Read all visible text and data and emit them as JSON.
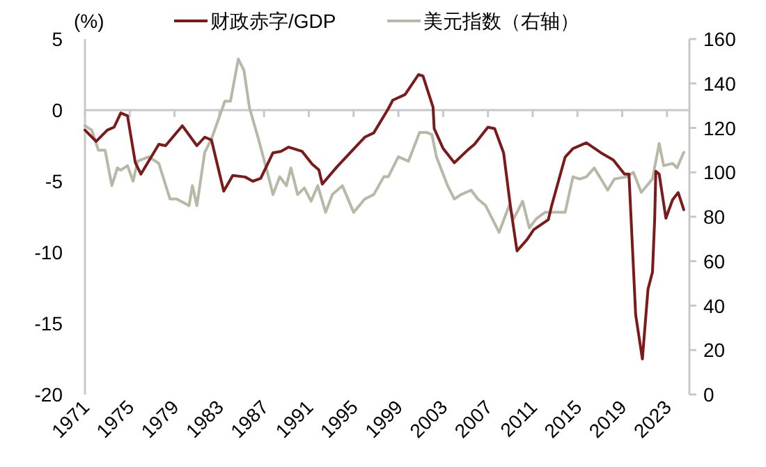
{
  "chart_data": {
    "type": "line",
    "ylabel": "(%)",
    "xlim": [
      1971,
      2025
    ],
    "xticks": [
      1971,
      1975,
      1979,
      1983,
      1987,
      1991,
      1995,
      1999,
      2003,
      2007,
      2011,
      2015,
      2019,
      2023
    ],
    "ylim": [
      -20,
      5
    ],
    "yticks": [
      -20,
      -15,
      -10,
      -5,
      0,
      5
    ],
    "y2lim": [
      0,
      160
    ],
    "y2ticks": [
      0,
      20,
      40,
      60,
      80,
      100,
      120,
      140,
      160
    ],
    "legend": "top",
    "line_style": "solid",
    "marker": "none",
    "series": [
      {
        "name": "财政赤字/GDP",
        "color": "#7b1a1a",
        "x": [
          1971,
          1972,
          1973,
          1973.6,
          1974.2,
          1974.8,
          1975.5,
          1976,
          1977.6,
          1978.2,
          1979.7,
          1981,
          1981.7,
          1982.3,
          1983.4,
          1984.2,
          1985.3,
          1986,
          1986.7,
          1987.8,
          1988.5,
          1989.2,
          1990.4,
          1991.3,
          1991.9,
          1992.2,
          1993.5,
          1996,
          1996.8,
          1998.1,
          1998.5,
          1999.6,
          2000.8,
          2001.2,
          2002.1,
          2002.2,
          2003,
          2004,
          2005.2,
          2005.8,
          2007,
          2007.6,
          2008.4,
          2009,
          2009.6,
          2010.5,
          2011.1,
          2012.4,
          2012.7,
          2013.9,
          2014.6,
          2015.5,
          2015.8,
          2017.1,
          2018.2,
          2019.2,
          2019.6,
          2020.2,
          2020.8,
          2021.3,
          2021.7,
          2021.9,
          2022,
          2022.3,
          2022.9,
          2023.5,
          2024,
          2024.5
        ],
        "values": [
          -1.4,
          -2.2,
          -1.4,
          -1.2,
          -0.2,
          -0.4,
          -3.7,
          -4.5,
          -2.4,
          -2.5,
          -1.1,
          -2.5,
          -1.9,
          -2.1,
          -5.7,
          -4.6,
          -4.7,
          -5,
          -4.8,
          -3.0,
          -2.9,
          -2.6,
          -2.9,
          -3.8,
          -4.2,
          -5.2,
          -4.0,
          -1.9,
          -1.6,
          0.1,
          0.7,
          1.1,
          2.5,
          2.4,
          0.2,
          -1.3,
          -2.7,
          -3.7,
          -2.8,
          -2.4,
          -1.2,
          -1.3,
          -3.0,
          -6.7,
          -9.9,
          -9.1,
          -8.4,
          -7.7,
          -6.7,
          -3.3,
          -2.7,
          -2.4,
          -2.3,
          -3.0,
          -3.5,
          -4.5,
          -4.5,
          -14.4,
          -17.5,
          -12.6,
          -11.4,
          -7.6,
          -4.3,
          -4.5,
          -7.6,
          -6.3,
          -5.8,
          -7.0
        ]
      },
      {
        "name": "美元指数（右轴）",
        "color": "#b7b8a5",
        "axis": "y2",
        "x": [
          1971,
          1971.6,
          1972.2,
          1972.8,
          1973.4,
          1973.9,
          1974.2,
          1974.8,
          1975.3,
          1975.7,
          1976.7,
          1977.6,
          1978.6,
          1979.2,
          1980.3,
          1980.6,
          1981,
          1981.7,
          1982.3,
          1983.5,
          1984,
          1984.7,
          1985.2,
          1985.7,
          1986.5,
          1987.3,
          1987.8,
          1988.4,
          1989,
          1989.4,
          1990,
          1990.6,
          1991.2,
          1991.8,
          1992.5,
          1993.1,
          1994,
          1995,
          1996,
          1996.8,
          1997.7,
          1998.1,
          1999,
          1999.9,
          2000.9,
          2001.5,
          2002,
          2002.4,
          2003.4,
          2004,
          2004.6,
          2005.5,
          2006.1,
          2006.8,
          2007.6,
          2008,
          2008.9,
          2009.3,
          2010.1,
          2010.7,
          2011.3,
          2012.1,
          2013.2,
          2013.9,
          2014.6,
          2015.2,
          2015.8,
          2016.5,
          2017.1,
          2017.7,
          2018.3,
          2019.4,
          2020,
          2020.7,
          2021.7,
          2022.3,
          2022.7,
          2023.5,
          2023.9,
          2024.5
        ],
        "values": [
          121,
          119,
          110,
          110,
          94,
          102,
          101,
          103,
          96,
          105,
          107,
          104,
          88,
          88,
          85,
          94,
          85,
          109,
          115,
          132,
          132,
          151,
          146,
          129,
          115,
          100,
          90,
          98,
          94,
          102,
          90,
          93,
          87,
          94,
          82,
          90,
          94,
          82,
          88,
          90,
          98,
          98,
          107,
          105,
          118,
          118,
          117,
          107,
          94,
          88,
          90,
          92,
          88,
          85,
          77,
          73,
          85,
          79,
          87,
          75,
          79,
          82,
          82,
          82,
          98,
          97,
          98,
          102,
          97,
          92,
          97,
          98,
          100,
          91,
          97,
          113,
          103,
          104,
          102,
          109
        ]
      }
    ]
  }
}
